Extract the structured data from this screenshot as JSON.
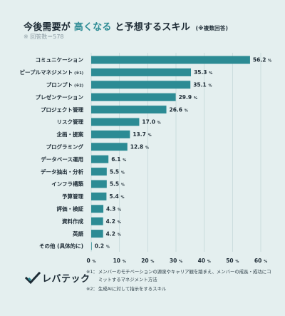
{
  "header": {
    "title_part1": "今後需要が",
    "title_highlight": "高くなる",
    "title_part2": "と予想するスキル",
    "title_note": "(※複数回答)",
    "respondents": "※ 回答数＝578"
  },
  "chart_data": {
    "type": "bar",
    "orientation": "horizontal",
    "categories": [
      "コミュニケーション",
      "ピープルマネジメント",
      "プロンプト",
      "プレゼンテーション",
      "プロジェクト管理",
      "リスク管理",
      "企画・提案",
      "プログラミング",
      "データベース運用",
      "データ抽出・分析",
      "インフラ構築",
      "予算管理",
      "評価・検証",
      "資料作成",
      "英語",
      "その他 (具体的に)"
    ],
    "category_notes": [
      "",
      "(※1)",
      "(※2)",
      "",
      "",
      "",
      "",
      "",
      "",
      "",
      "",
      "",
      "",
      "",
      "",
      ""
    ],
    "values": [
      56.2,
      35.3,
      35.1,
      29.9,
      26.6,
      17.0,
      13.7,
      12.8,
      6.1,
      5.5,
      5.5,
      5.4,
      4.3,
      4.2,
      4.2,
      0.2
    ],
    "value_labels": [
      "56.2",
      "35.3",
      "35.1",
      "29.9",
      "26.6",
      "17.0",
      "13.7",
      "12.8",
      "6.1",
      "5.5",
      "5.5",
      "5.4",
      "4.3",
      "4.2",
      "4.2",
      "0.2"
    ],
    "unit": "%",
    "xticks": [
      0,
      10,
      20,
      30,
      40,
      50,
      60
    ],
    "xlim": [
      0,
      60
    ],
    "grid": true,
    "bar_color": "#2c8b94",
    "grid_color": "#c3d7d8"
  },
  "footnotes": [
    {
      "mark": "※1：",
      "text": "メンバーのモチベーションの源泉やキャリア観を踏まえ、メンバーの成長・成功にコミットするマネジメント方法"
    },
    {
      "mark": "※2：",
      "text": "生成AIに対して指示をするスキル"
    }
  ],
  "logo": {
    "text": "レバテック",
    "accent_color": "#2c8b94",
    "icon": "checkmark-logo-icon"
  }
}
